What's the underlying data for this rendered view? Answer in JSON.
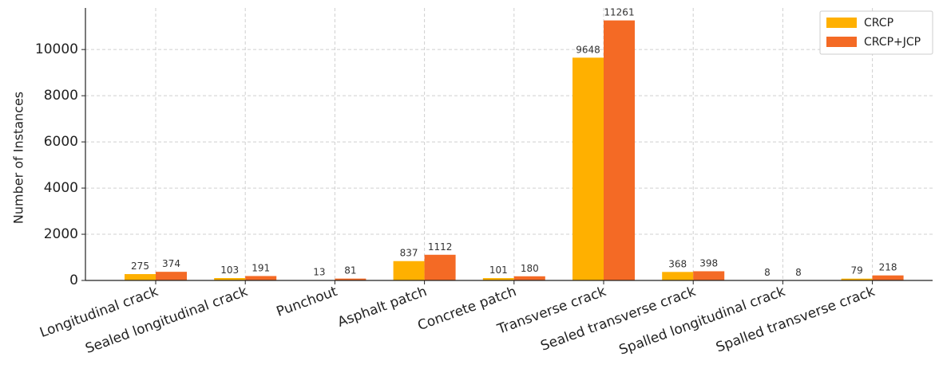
{
  "chart_data": {
    "type": "bar",
    "title": "",
    "xlabel": "",
    "ylabel": "Number of Instances",
    "ylim": [
      0,
      11800
    ],
    "yticks": [
      0,
      2000,
      4000,
      6000,
      8000,
      10000
    ],
    "grid": true,
    "legend_position": "top-right",
    "categories": [
      "Longitudinal crack",
      "Sealed longitudinal crack",
      "Punchout",
      "Asphalt patch",
      "Concrete patch",
      "Transverse crack",
      "Sealed transverse crack",
      "Spalled longitudinal crack",
      "Spalled transverse crack"
    ],
    "series": [
      {
        "name": "CRCP",
        "color": "#FFB000",
        "values": [
          275,
          103,
          13,
          837,
          101,
          9648,
          368,
          8,
          79
        ]
      },
      {
        "name": "CRCP+JCP",
        "color": "#F46A25",
        "values": [
          374,
          191,
          81,
          1112,
          180,
          11261,
          398,
          8,
          218
        ]
      }
    ]
  }
}
